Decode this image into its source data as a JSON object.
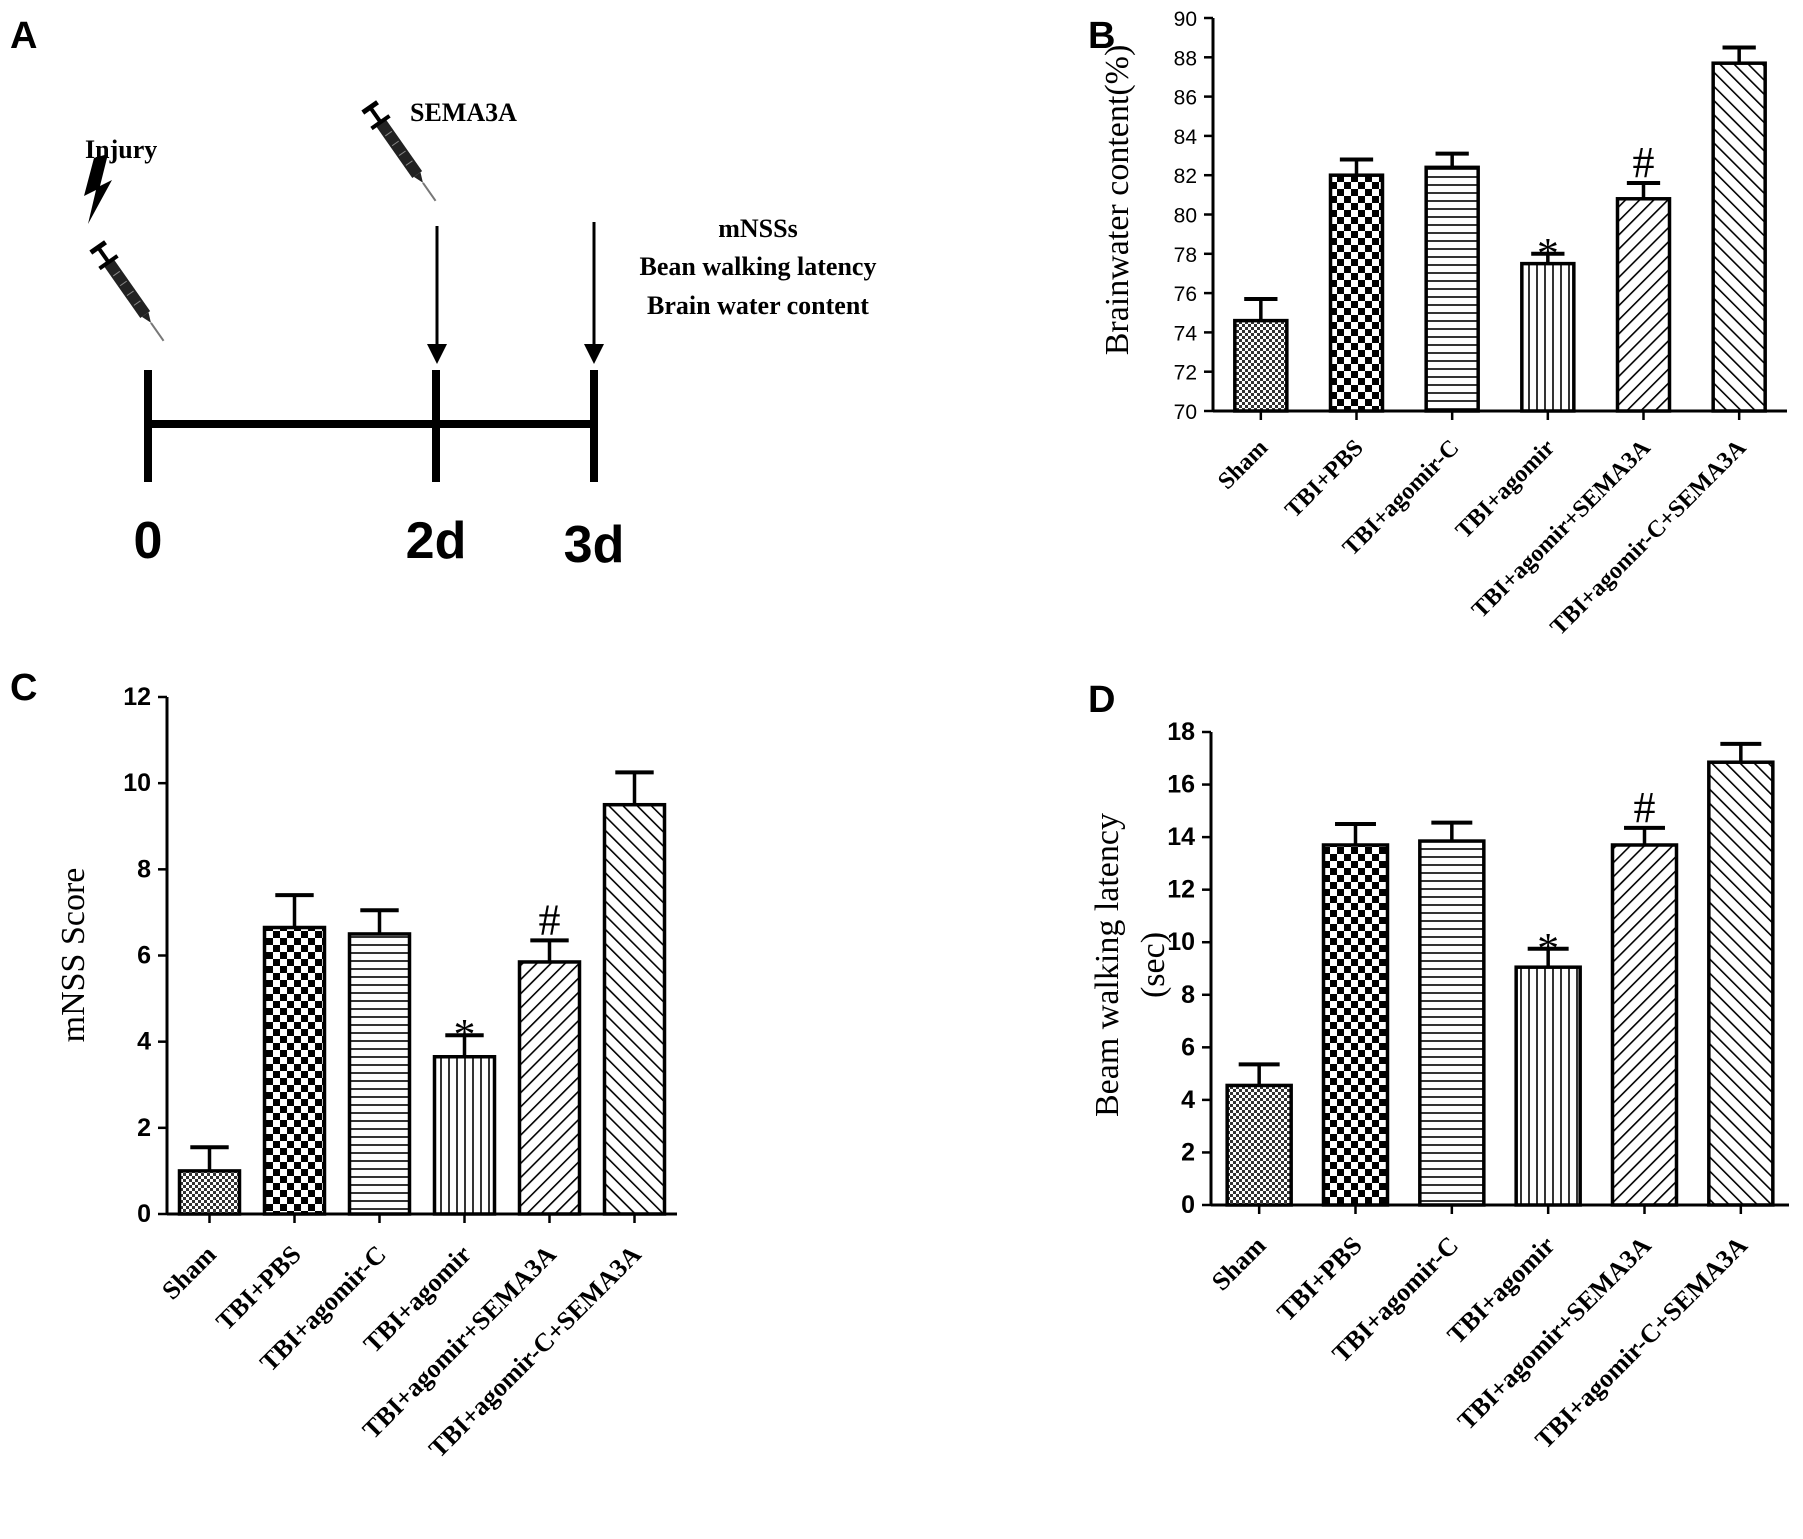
{
  "panel_letters": [
    "A",
    "B",
    "C",
    "D"
  ],
  "timeline": {
    "injury_label": "Injury",
    "sema_label": "SEMA3A",
    "outcomes": [
      "mNSSs",
      "Bean walking latency",
      "Brain water content"
    ],
    "ticks": [
      "0",
      "2d",
      "3d"
    ]
  },
  "chart_data": [
    {
      "panel": "B",
      "type": "bar",
      "ylabel": "Brainwater content(%)",
      "xlabel": "",
      "ylim": [
        70,
        90
      ],
      "yticks": [
        70,
        72,
        74,
        76,
        78,
        80,
        82,
        84,
        86,
        88,
        90
      ],
      "categories": [
        "Sham",
        "TBI+PBS",
        "TBI+agomir-C",
        "TBI+agomir",
        "TBI+agomir+SEMA3A",
        "TBI+agomir-C+SEMA3A"
      ],
      "values": [
        74.6,
        82.0,
        82.4,
        77.5,
        80.8,
        87.7
      ],
      "errors": [
        1.1,
        0.8,
        0.7,
        0.5,
        0.8,
        0.8
      ],
      "annotations": [
        "",
        "",
        "",
        "*",
        "#",
        ""
      ],
      "patterns": [
        "dots",
        "checker",
        "hlines",
        "vlines",
        "fwd",
        "back"
      ]
    },
    {
      "panel": "C",
      "type": "bar",
      "ylabel": "mNSS Score",
      "xlabel": "",
      "ylim": [
        0,
        12
      ],
      "yticks": [
        0,
        2,
        4,
        6,
        8,
        10,
        12
      ],
      "categories": [
        "Sham",
        "TBI+PBS",
        "TBI+agomir-C",
        "TBI+agomir",
        "TBI+agomir+SEMA3A",
        "TBI+agomir-C+SEMA3A"
      ],
      "values": [
        1.0,
        6.65,
        6.5,
        3.65,
        5.85,
        9.5
      ],
      "errors": [
        0.55,
        0.75,
        0.55,
        0.5,
        0.5,
        0.75
      ],
      "annotations": [
        "",
        "",
        "",
        "*",
        "#",
        ""
      ],
      "patterns": [
        "dots",
        "checker",
        "hlines",
        "vlines",
        "fwd",
        "back"
      ]
    },
    {
      "panel": "D",
      "type": "bar",
      "ylabel": "Beam walking latency",
      "ylabel2": "(sec)",
      "xlabel": "",
      "ylim": [
        0,
        18
      ],
      "yticks": [
        0,
        2,
        4,
        6,
        8,
        10,
        12,
        14,
        16,
        18
      ],
      "categories": [
        "Sham",
        "TBI+PBS",
        "TBI+agomir-C",
        "TBI+agomir",
        "TBI+agomir+SEMA3A",
        "TBI+agomir-C+SEMA3A"
      ],
      "values": [
        4.55,
        13.7,
        13.85,
        9.05,
        13.7,
        16.85
      ],
      "errors": [
        0.8,
        0.8,
        0.7,
        0.7,
        0.65,
        0.7
      ],
      "annotations": [
        "",
        "",
        "",
        "*",
        "#",
        ""
      ],
      "patterns": [
        "dots",
        "checker",
        "hlines",
        "vlines",
        "fwd",
        "back"
      ]
    }
  ]
}
